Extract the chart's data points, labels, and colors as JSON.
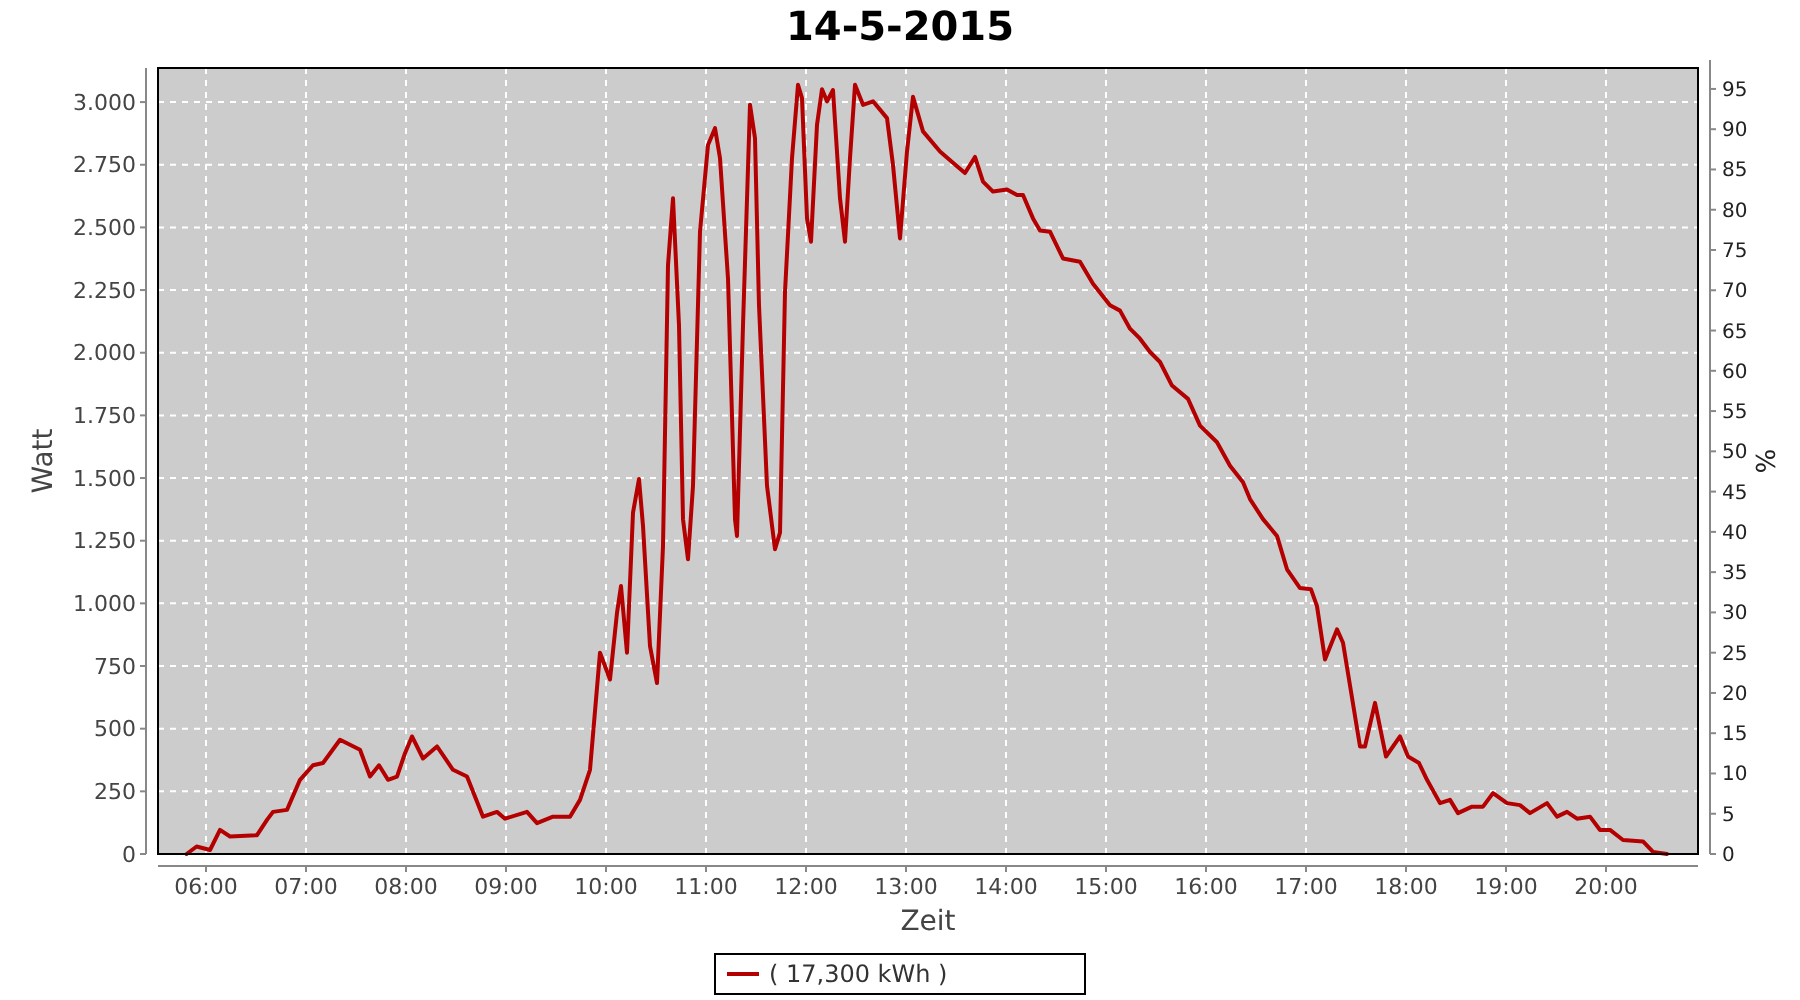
{
  "chart_data": {
    "type": "line",
    "title": "14-5-2015",
    "xlabel": "Zeit",
    "ylabel": "Watt",
    "y2label": "%",
    "x": [
      5.806,
      5.906,
      6.04,
      6.14,
      6.24,
      6.51,
      6.61,
      6.67,
      6.81,
      6.94,
      7.07,
      7.17,
      7.34,
      7.54,
      7.64,
      7.73,
      7.82,
      7.91,
      7.99,
      8.06,
      8.17,
      8.31,
      8.47,
      8.61,
      8.77,
      8.91,
      8.99,
      9.21,
      9.31,
      9.47,
      9.64,
      9.74,
      9.84,
      9.94,
      10.04,
      10.11,
      10.15,
      10.21,
      10.27,
      10.33,
      10.37,
      10.44,
      10.51,
      10.57,
      10.62,
      10.67,
      10.73,
      10.77,
      10.82,
      10.87,
      10.94,
      11.02,
      11.09,
      11.14,
      11.22,
      11.29,
      11.31,
      11.37,
      11.44,
      11.49,
      11.53,
      11.61,
      11.69,
      11.74,
      11.79,
      11.86,
      11.92,
      11.96,
      12.01,
      12.05,
      12.11,
      12.16,
      12.21,
      12.27,
      12.34,
      12.39,
      12.44,
      12.49,
      12.57,
      12.67,
      12.81,
      12.87,
      12.94,
      13.01,
      13.07,
      13.17,
      13.34,
      13.51,
      13.59,
      13.69,
      13.77,
      13.87,
      14.01,
      14.11,
      14.17,
      14.27,
      14.34,
      14.44,
      14.57,
      14.74,
      14.87,
      15.04,
      15.14,
      15.24,
      15.34,
      15.44,
      15.54,
      15.66,
      15.82,
      15.94,
      16.11,
      16.24,
      16.37,
      16.44,
      16.57,
      16.71,
      16.81,
      16.94,
      17.05,
      17.11,
      17.19,
      17.31,
      17.37,
      17.54,
      17.59,
      17.69,
      17.8,
      17.94,
      18.02,
      18.13,
      18.21,
      18.34,
      18.44,
      18.52,
      18.66,
      18.77,
      18.87,
      19.01,
      19.14,
      19.24,
      19.41,
      19.51,
      19.61,
      19.71,
      19.84,
      19.94,
      20.04,
      20.17,
      20.37,
      20.47,
      20.61
    ],
    "series": [
      {
        "name": "( 17,300 kWh )",
        "color": "#b40000",
        "values": [
          0,
          30,
          16,
          96,
          70,
          75,
          136,
          168,
          176,
          296,
          354,
          363,
          456,
          416,
          309,
          354,
          296,
          309,
          402,
          469,
          381,
          429,
          336,
          309,
          149,
          168,
          141,
          168,
          123,
          149,
          149,
          216,
          336,
          803,
          696,
          962,
          1069,
          803,
          1362,
          1496,
          1309,
          829,
          682,
          1229,
          2349,
          2616,
          2109,
          1336,
          1176,
          1469,
          2483,
          2829,
          2896,
          2776,
          2296,
          1336,
          1269,
          2109,
          2989,
          2856,
          2189,
          1469,
          1216,
          1282,
          2242,
          2776,
          3069,
          3016,
          2536,
          2443,
          2909,
          3051,
          3003,
          3048,
          2616,
          2443,
          2776,
          3069,
          2989,
          3003,
          2936,
          2749,
          2456,
          2803,
          3021,
          2883,
          2803,
          2744,
          2717,
          2781,
          2683,
          2643,
          2651,
          2629,
          2629,
          2536,
          2488,
          2483,
          2376,
          2363,
          2275,
          2189,
          2168,
          2096,
          2056,
          2003,
          1963,
          1869,
          1816,
          1709,
          1643,
          1549,
          1483,
          1416,
          1336,
          1269,
          1136,
          1061,
          1056,
          989,
          776,
          896,
          843,
          429,
          429,
          603,
          389,
          469,
          389,
          363,
          296,
          203,
          216,
          163,
          189,
          189,
          243,
          203,
          195,
          163,
          203,
          149,
          168,
          141,
          149,
          96,
          96,
          56,
          50,
          8,
          0
        ]
      }
    ],
    "xlim": [
      5.52,
      20.92
    ],
    "xticks": [
      {
        "value": 6,
        "label": "06:00"
      },
      {
        "value": 7,
        "label": "07:00"
      },
      {
        "value": 8,
        "label": "08:00"
      },
      {
        "value": 9,
        "label": "09:00"
      },
      {
        "value": 10,
        "label": "10:00"
      },
      {
        "value": 11,
        "label": "11:00"
      },
      {
        "value": 12,
        "label": "12:00"
      },
      {
        "value": 13,
        "label": "13:00"
      },
      {
        "value": 14,
        "label": "14:00"
      },
      {
        "value": 15,
        "label": "15:00"
      },
      {
        "value": 16,
        "label": "16:00"
      },
      {
        "value": 17,
        "label": "17:00"
      },
      {
        "value": 18,
        "label": "18:00"
      },
      {
        "value": 19,
        "label": "19:00"
      },
      {
        "value": 20,
        "label": "20:00"
      }
    ],
    "ylim": [
      0,
      3136
    ],
    "yticks": [
      0,
      250,
      500,
      750,
      {
        "value": 1000,
        "label": "1.000"
      },
      {
        "value": 1250,
        "label": "1.250"
      },
      {
        "value": 1500,
        "label": "1.500"
      },
      {
        "value": 1750,
        "label": "1.750"
      },
      {
        "value": 2000,
        "label": "2.000"
      },
      {
        "value": 2250,
        "label": "2.250"
      },
      {
        "value": 2500,
        "label": "2.500"
      },
      {
        "value": 2750,
        "label": "2.750"
      },
      {
        "value": 3000,
        "label": "3.000"
      }
    ],
    "y2lim": [
      0,
      97.6
    ],
    "y2ticks": [
      0,
      5,
      10,
      15,
      20,
      25,
      30,
      35,
      40,
      45,
      50,
      55,
      60,
      65,
      70,
      75,
      80,
      85,
      90,
      95
    ],
    "grid": true,
    "legend": "bottom",
    "marker": "none",
    "line_style": "solid"
  }
}
